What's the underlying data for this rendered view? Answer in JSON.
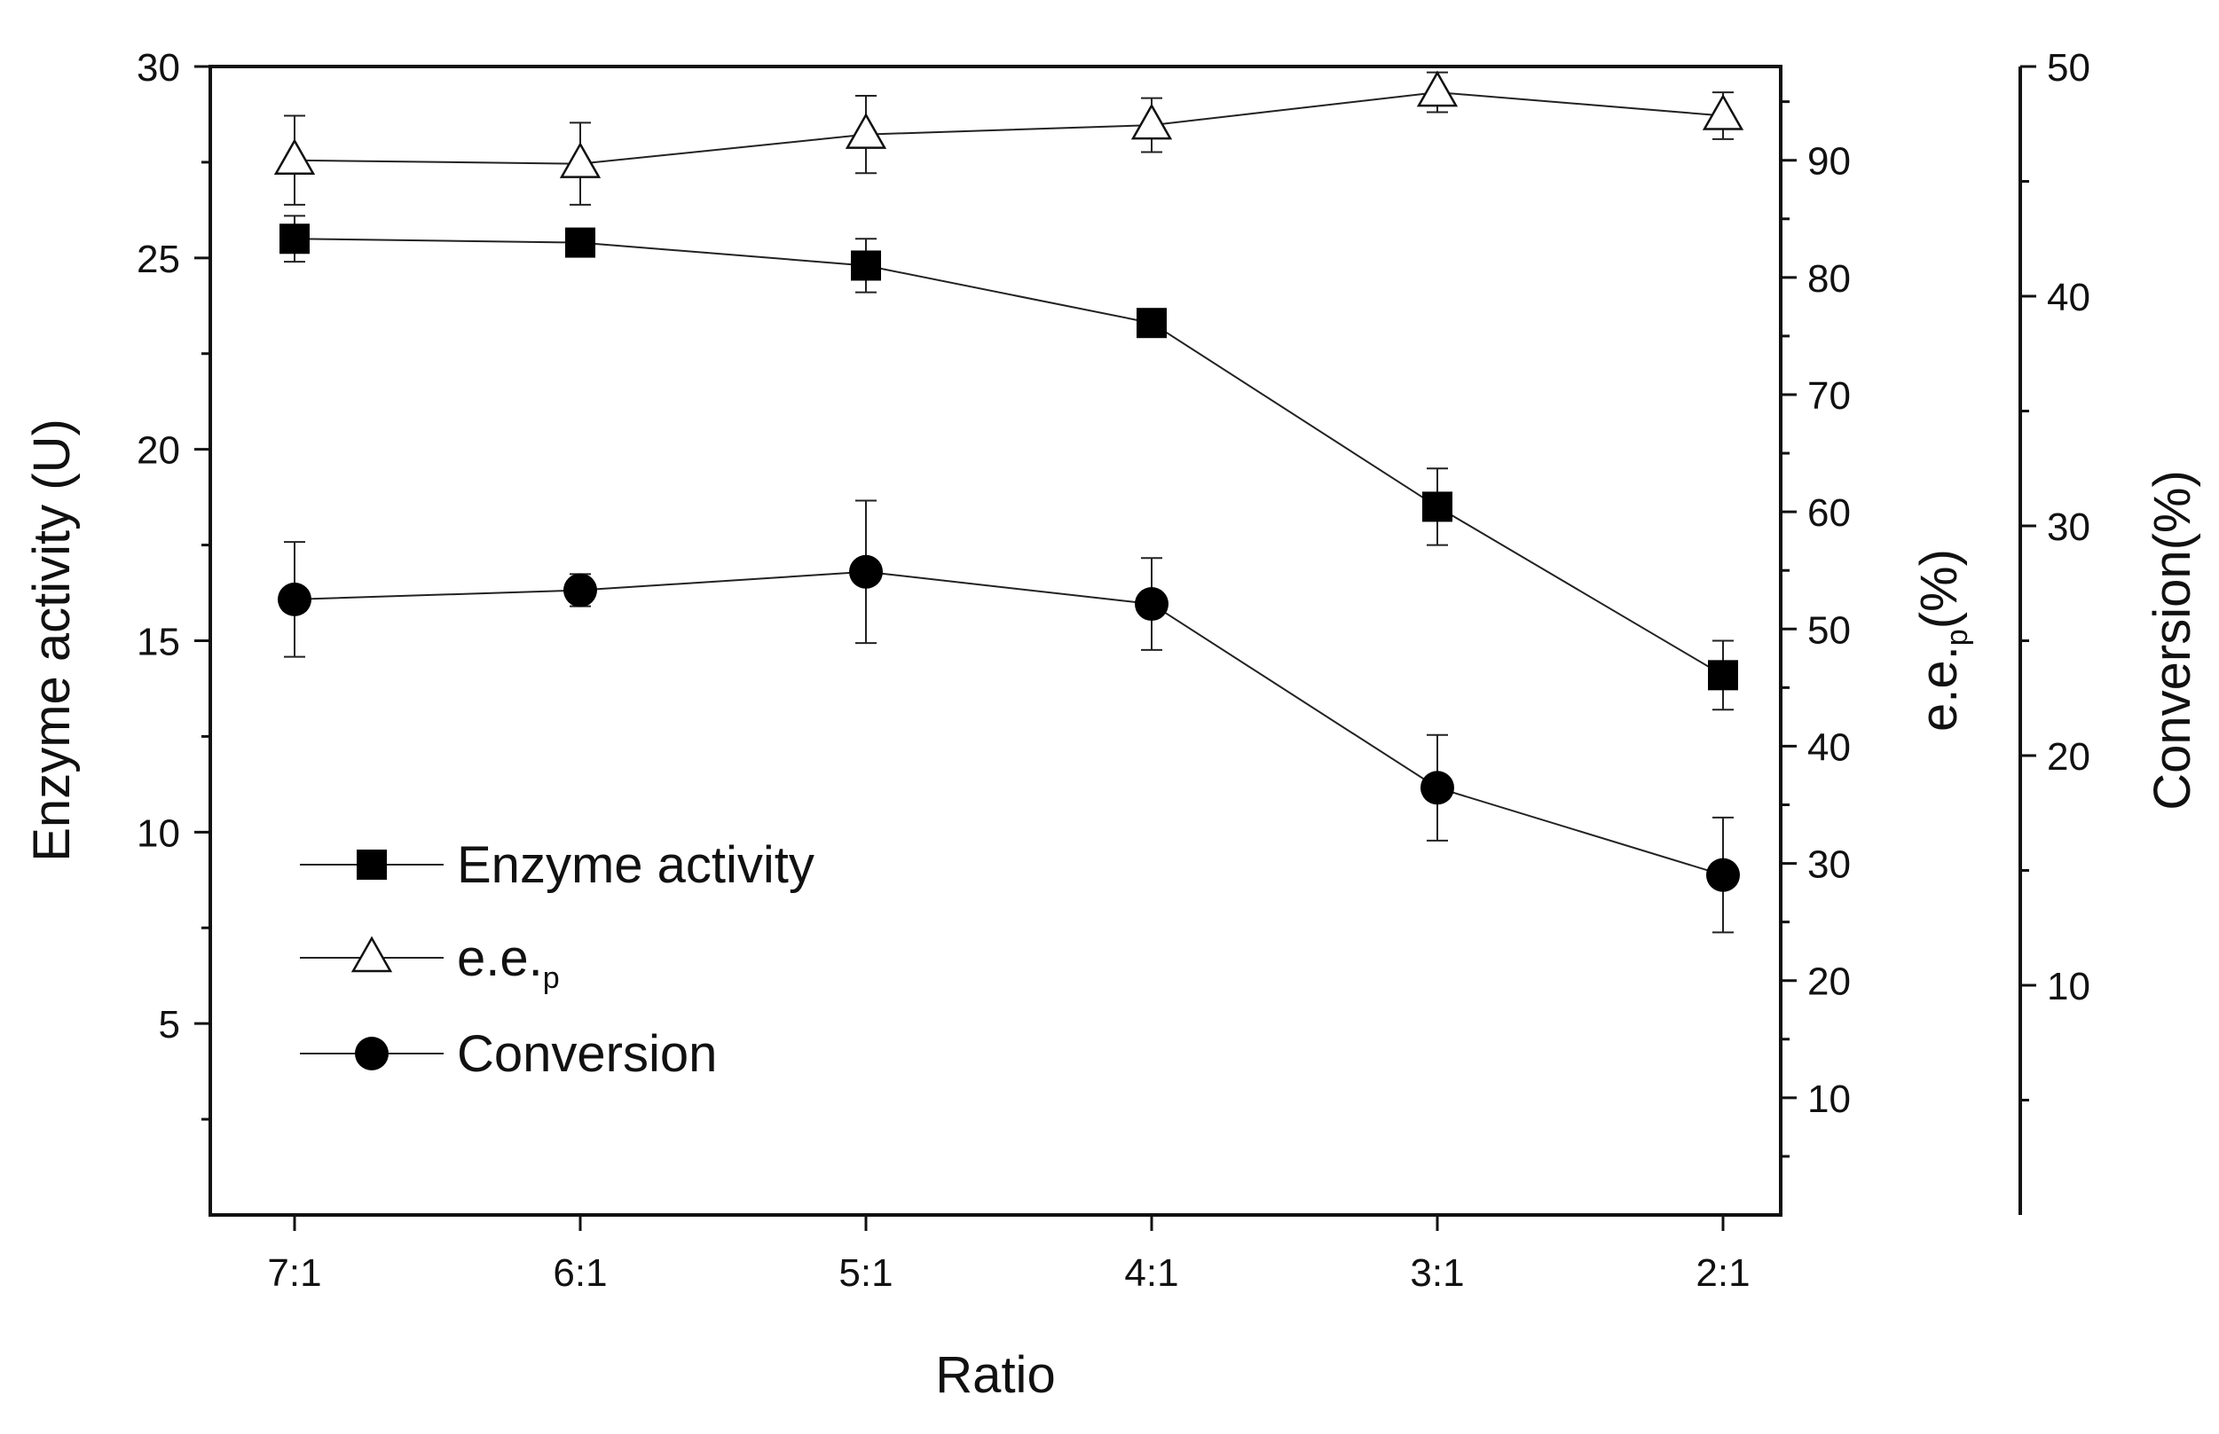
{
  "chart_data": {
    "type": "line",
    "categories": [
      "7:1",
      "6:1",
      "5:1",
      "4:1",
      "3:1",
      "2:1"
    ],
    "xlabel": "Ratio",
    "axes": {
      "left": {
        "label": "Enzyme activity (U)",
        "range": [
          0,
          30
        ],
        "ticks": [
          "5",
          "10",
          "15",
          "20",
          "25",
          "30"
        ]
      },
      "right1": {
        "label_main": "e.e.",
        "label_sub": "p",
        "label_suffix": "(%)",
        "range": [
          0,
          98
        ],
        "ticks": [
          "10",
          "20",
          "30",
          "40",
          "50",
          "60",
          "70",
          "80",
          "90"
        ]
      },
      "right2": {
        "label": "Conversion(%)",
        "range": [
          0,
          50
        ],
        "ticks": [
          "10",
          "20",
          "30",
          "40",
          "50"
        ]
      }
    },
    "series": [
      {
        "name": "Enzyme activity",
        "axis": "left",
        "marker": "filled-square",
        "values": [
          25.5,
          25.4,
          24.8,
          23.3,
          18.5,
          14.1
        ],
        "errors": [
          0.6,
          0.0,
          0.7,
          0.0,
          1.0,
          0.9
        ]
      },
      {
        "name": "e.e.p",
        "axis": "right1",
        "marker": "open-triangle",
        "values": [
          90.0,
          89.7,
          92.2,
          93.0,
          95.8,
          93.8
        ],
        "errors": [
          3.8,
          3.5,
          3.3,
          2.3,
          1.7,
          2.0
        ]
      },
      {
        "name": "Conversion",
        "axis": "right2",
        "marker": "filled-circle",
        "values": [
          26.8,
          27.2,
          28.0,
          26.6,
          18.6,
          14.8
        ],
        "errors": [
          2.5,
          0.7,
          3.1,
          2.0,
          2.3,
          2.5
        ]
      }
    ],
    "legend": {
      "position": "lower-left",
      "items": [
        {
          "label": "Enzyme activity",
          "marker": "filled-square"
        },
        {
          "label": "e.e.",
          "sub": "p",
          "marker": "open-triangle"
        },
        {
          "label": "Conversion",
          "marker": "filled-circle"
        }
      ]
    },
    "colors": {
      "line": "#222222",
      "marker_fill": "#000000",
      "background": "#ffffff"
    }
  }
}
